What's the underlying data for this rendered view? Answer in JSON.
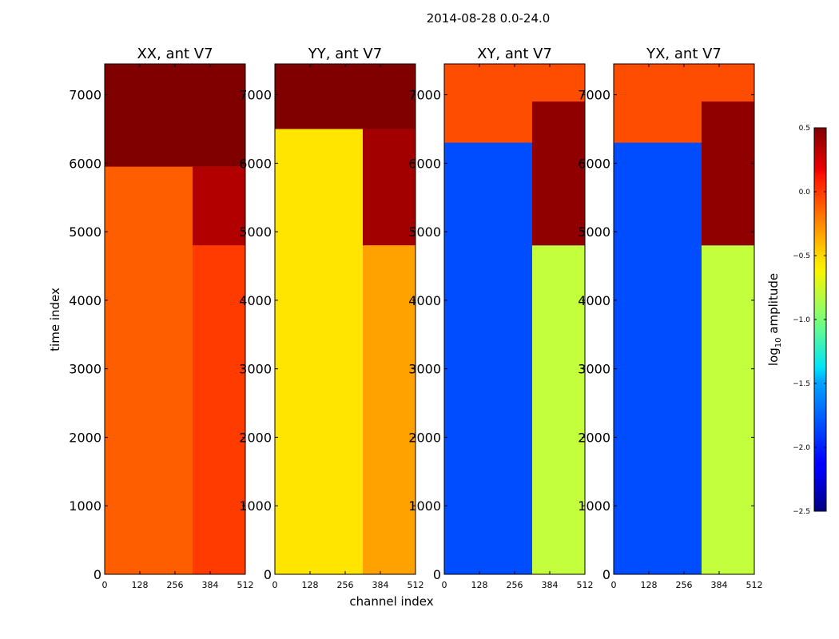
{
  "figure": {
    "suptitle": "2014-08-28 0.0-24.0"
  },
  "chart_data": {
    "type": "heatmap",
    "xlabel": "channel index",
    "ylabel": "time index",
    "xlim": [
      0,
      512
    ],
    "ylim": [
      0,
      7450
    ],
    "x_ticks": [
      0,
      128,
      256,
      384,
      512
    ],
    "y_ticks": [
      0,
      1000,
      2000,
      3000,
      4000,
      5000,
      6000,
      7000
    ],
    "colormap": "jet",
    "colorbar": {
      "label_main": "log",
      "label_sub": "10",
      "label_rest": " amplitude",
      "range": [
        -2.5,
        0.5
      ],
      "ticks": [
        0.5,
        0.0,
        -0.5,
        -1.0,
        -1.5,
        -2.0,
        -2.5
      ],
      "tick_labels": [
        "0.5",
        "0.0",
        "−0.5",
        "−1.0",
        "−1.5",
        "−2.0",
        "−2.5"
      ]
    },
    "panels": [
      {
        "title": "XX, ant V7",
        "base_value": -0.15,
        "blocks": [
          {
            "y": [
              0,
              5950
            ],
            "x": [
              0,
              512
            ],
            "value": -0.15
          },
          {
            "y": [
              5950,
              7450
            ],
            "x": [
              0,
              512
            ],
            "value": 0.5
          },
          {
            "y": [
              4800,
              5950
            ],
            "x": [
              320,
              512
            ],
            "value": 0.35
          },
          {
            "y": [
              0,
              4800
            ],
            "x": [
              320,
              512
            ],
            "value": -0.05
          }
        ]
      },
      {
        "title": "YY, ant V7",
        "base_value": -0.55,
        "blocks": [
          {
            "y": [
              0,
              6500
            ],
            "x": [
              0,
              512
            ],
            "value": -0.55
          },
          {
            "y": [
              6500,
              7450
            ],
            "x": [
              0,
              512
            ],
            "value": 0.5
          },
          {
            "y": [
              4800,
              6500
            ],
            "x": [
              320,
              512
            ],
            "value": 0.4
          },
          {
            "y": [
              0,
              4800
            ],
            "x": [
              320,
              512
            ],
            "value": -0.35
          }
        ]
      },
      {
        "title": "XY, ant V7",
        "base_value": -1.9,
        "blocks": [
          {
            "y": [
              0,
              6300
            ],
            "x": [
              0,
              512
            ],
            "value": -1.9
          },
          {
            "y": [
              6300,
              7450
            ],
            "x": [
              0,
              512
            ],
            "value": -0.1
          },
          {
            "y": [
              4800,
              6900
            ],
            "x": [
              320,
              512
            ],
            "value": 0.45
          },
          {
            "y": [
              0,
              4800
            ],
            "x": [
              320,
              512
            ],
            "value": -0.8
          }
        ]
      },
      {
        "title": "YX, ant V7",
        "base_value": -1.9,
        "blocks": [
          {
            "y": [
              0,
              6300
            ],
            "x": [
              0,
              512
            ],
            "value": -1.9
          },
          {
            "y": [
              6300,
              7450
            ],
            "x": [
              0,
              512
            ],
            "value": -0.1
          },
          {
            "y": [
              4800,
              6900
            ],
            "x": [
              320,
              512
            ],
            "value": 0.45
          },
          {
            "y": [
              0,
              4800
            ],
            "x": [
              320,
              512
            ],
            "value": -0.8
          }
        ]
      }
    ]
  }
}
